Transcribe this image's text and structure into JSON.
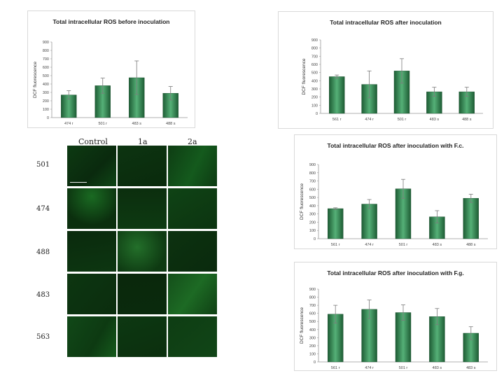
{
  "chart_data": [
    {
      "type": "bar",
      "title": "Total intracellular ROS before inoculation",
      "ylabel": "DCF fluorescence",
      "categories": [
        "474 r",
        "501 r",
        "483 s",
        "488 s"
      ],
      "values": [
        270,
        380,
        475,
        290
      ],
      "errors": [
        50,
        90,
        200,
        80
      ],
      "ylim": [
        0,
        900
      ],
      "yticks": [
        "0",
        "100",
        "200",
        "300",
        "400",
        "500",
        "600",
        "700",
        "800",
        "900"
      ],
      "colors": {
        "bar_dark": "#1d5c34",
        "bar_light": "#55b077",
        "error": "#7a7a7a",
        "axis": "#999999"
      }
    },
    {
      "type": "bar",
      "title": "Total intracellular ROS after inoculation",
      "ylabel": "DCF fluorescence",
      "categories": [
        "561 r",
        "474 r",
        "501 r",
        "483 s",
        "488 s"
      ],
      "values": [
        450,
        355,
        520,
        265,
        265
      ],
      "errors": [
        20,
        165,
        150,
        55,
        55
      ],
      "ylim": [
        0,
        900
      ],
      "yticks": [
        "0",
        "100",
        "200",
        "300",
        "400",
        "500",
        "600",
        "700",
        "800",
        "900"
      ],
      "colors": {
        "bar_dark": "#1d5c34",
        "bar_light": "#55b077",
        "error": "#7a7a7a",
        "axis": "#999999"
      }
    },
    {
      "type": "bar",
      "title": "Total intracellular ROS after inoculation with F.c.",
      "ylabel": "DCF fluorescence",
      "categories": [
        "561 r",
        "474 r",
        "501 r",
        "483 s",
        "488 s"
      ],
      "values": [
        365,
        420,
        605,
        265,
        490
      ],
      "errors": [
        10,
        55,
        115,
        75,
        50
      ],
      "ylim": [
        0,
        900
      ],
      "yticks": [
        "0",
        "100",
        "200",
        "300",
        "400",
        "500",
        "600",
        "700",
        "800",
        "900"
      ],
      "colors": {
        "bar_dark": "#1d5c34",
        "bar_light": "#55b077",
        "error": "#7a7a7a",
        "axis": "#999999"
      }
    },
    {
      "type": "bar",
      "title": "Total intracellular ROS after inoculation with F.g.",
      "ylabel": "DCF fluorescence",
      "categories": [
        "561 r",
        "474 r",
        "501 r",
        "483 s",
        "483 s"
      ],
      "values": [
        590,
        650,
        610,
        560,
        355
      ],
      "errors": [
        110,
        115,
        95,
        100,
        80
      ],
      "ylim": [
        0,
        900
      ],
      "yticks": [
        "0",
        "100",
        "200",
        "300",
        "400",
        "500",
        "600",
        "700",
        "800",
        "900"
      ],
      "colors": {
        "bar_dark": "#1d5c34",
        "bar_light": "#55b077",
        "error": "#7a7a7a",
        "axis": "#999999"
      }
    }
  ],
  "micrographs": {
    "columns": [
      "Control",
      "1a",
      "2a"
    ],
    "rows": [
      "501",
      "474",
      "488",
      "483",
      "563"
    ]
  }
}
